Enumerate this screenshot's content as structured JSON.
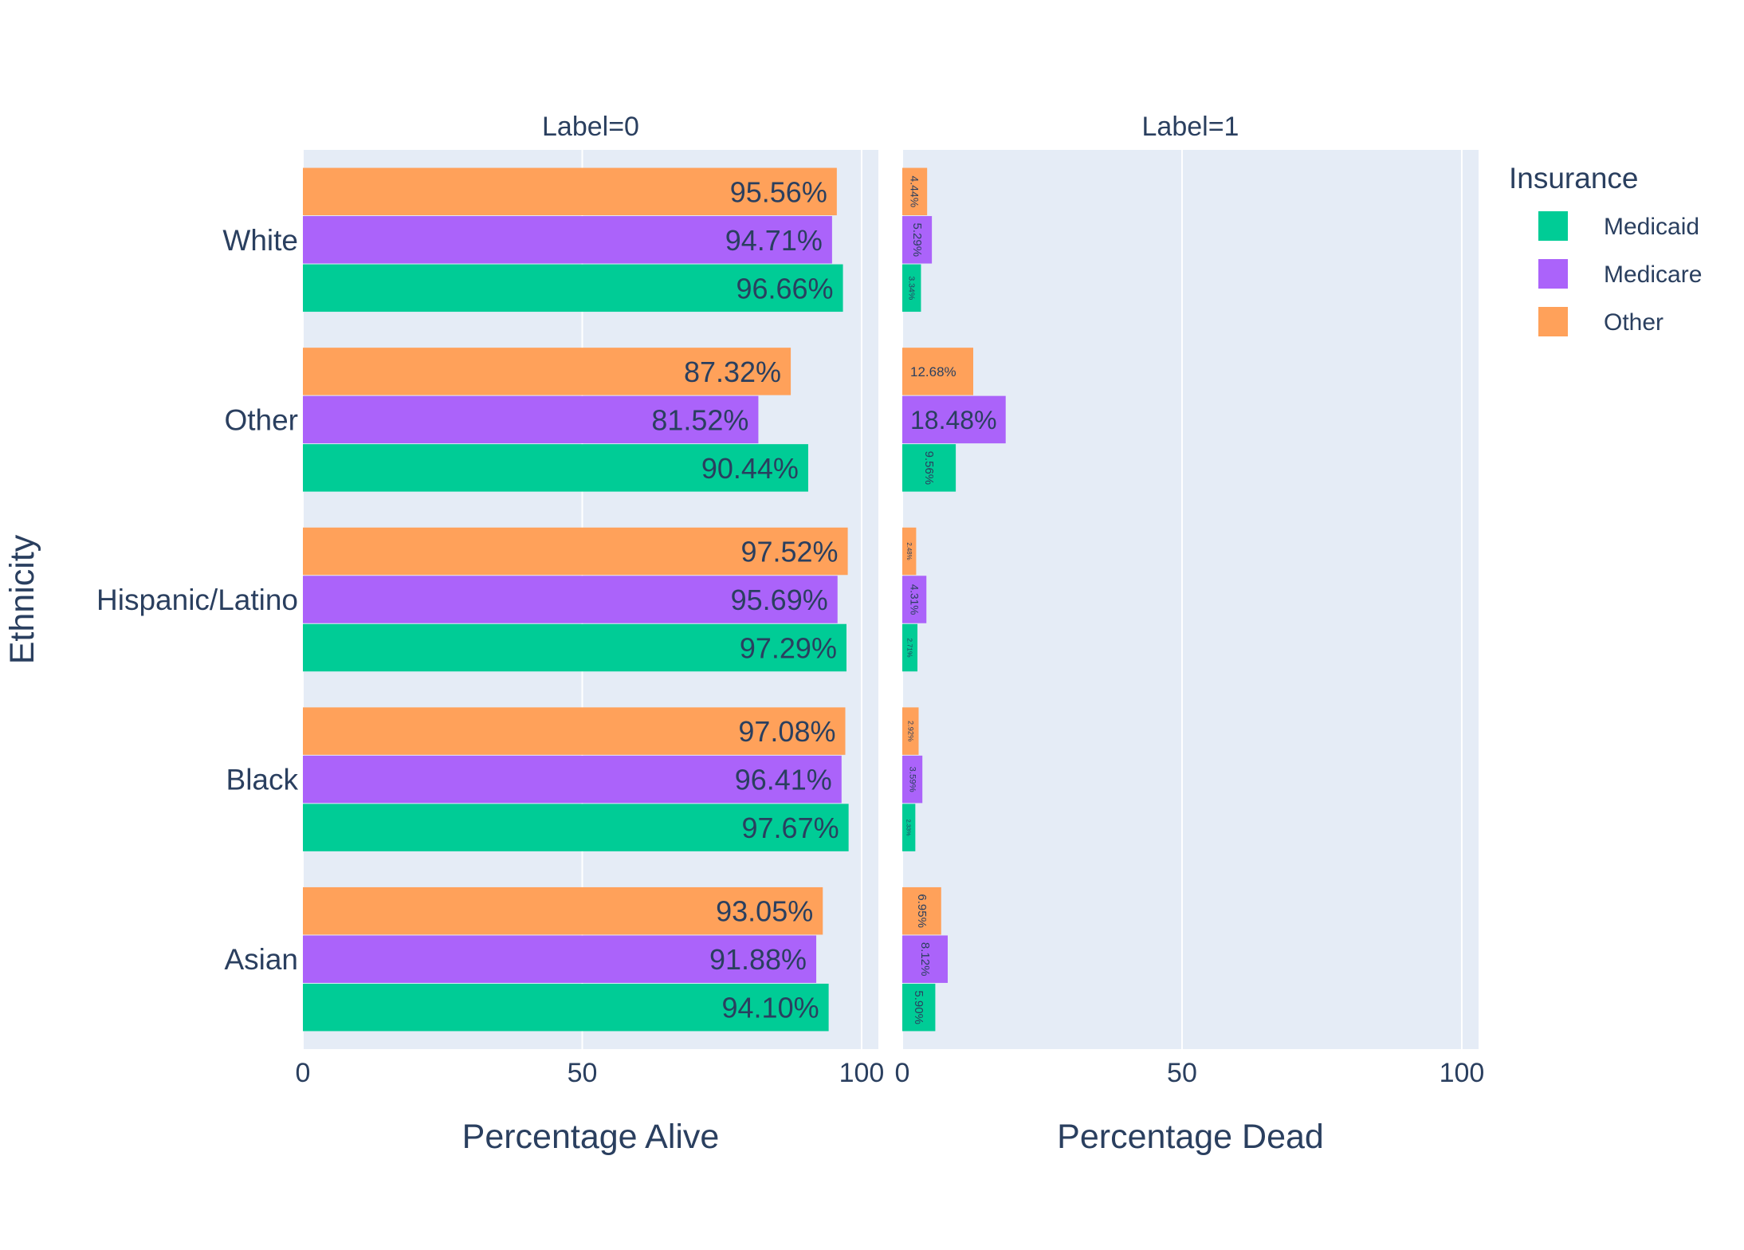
{
  "chart_data": {
    "type": "bar",
    "orientation": "horizontal",
    "barmode": "group",
    "ylabel": "Ethnicity",
    "categories": [
      "White",
      "Other",
      "Hispanic/Latino",
      "Black",
      "Asian"
    ],
    "legend": {
      "title": "Insurance",
      "position": "top-right"
    },
    "grid": true,
    "colors": {
      "Medicaid": "#00cc96",
      "Medicare": "#ab63fa",
      "Other": "#ffa15a",
      "plot_bg": "#e5ecf6",
      "text": "#2a3f5f"
    },
    "panels": [
      {
        "facet_label": "Label=0",
        "xlabel": "Percentage Alive",
        "xlim": [
          0,
          103
        ],
        "xticks": [
          0,
          50,
          100
        ],
        "series": [
          {
            "name": "Medicaid",
            "values": [
              96.66,
              90.44,
              97.29,
              97.67,
              94.1
            ],
            "labels": [
              "96.66%",
              "90.44%",
              "97.29%",
              "97.67%",
              "94.10%"
            ]
          },
          {
            "name": "Medicare",
            "values": [
              94.71,
              81.52,
              95.69,
              96.41,
              91.88
            ],
            "labels": [
              "94.71%",
              "81.52%",
              "95.69%",
              "96.41%",
              "91.88%"
            ]
          },
          {
            "name": "Other",
            "values": [
              95.56,
              87.32,
              97.52,
              97.08,
              93.05
            ],
            "labels": [
              "95.56%",
              "87.32%",
              "97.52%",
              "97.08%",
              "93.05%"
            ]
          }
        ]
      },
      {
        "facet_label": "Label=1",
        "xlabel": "Percentage Dead",
        "xlim": [
          0,
          103
        ],
        "xticks": [
          0,
          50,
          100
        ],
        "series": [
          {
            "name": "Medicaid",
            "values": [
              3.34,
              9.56,
              2.71,
              2.33,
              5.9
            ],
            "labels": [
              "3.34%",
              "9.56%",
              "2.71%",
              "2.33%",
              "5.90%"
            ]
          },
          {
            "name": "Medicare",
            "values": [
              5.29,
              18.48,
              4.31,
              3.59,
              8.12
            ],
            "labels": [
              "5.29%",
              "18.48%",
              "4.31%",
              "3.59%",
              "8.12%"
            ]
          },
          {
            "name": "Other",
            "values": [
              4.44,
              12.68,
              2.48,
              2.92,
              6.95
            ],
            "labels": [
              "4.44%",
              "12.68%",
              "2.48%",
              "2.92%",
              "6.95%"
            ]
          }
        ]
      }
    ]
  }
}
